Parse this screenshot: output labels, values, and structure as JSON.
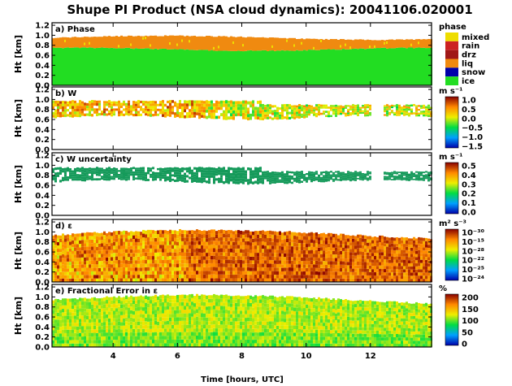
{
  "title": "Shupe PI Product (NSA cloud dynamics): 20041106.020001",
  "xlabel": "Time [hours, UTC]",
  "colors": {
    "phase_ice": "#22dd22",
    "phase_snow": "#0000aa",
    "phase_liq": "#f08a10",
    "phase_drz": "#a01818",
    "phase_rain": "#cc2222",
    "phase_mixed": "#eedd00",
    "uncertainty": "#159a5a"
  },
  "chart_data": [
    {
      "type": "heatmap",
      "panel_label": "a) Phase",
      "ylabel": "Ht [km]",
      "xlim": [
        2.1,
        13.9
      ],
      "ylim": [
        0.0,
        1.25
      ],
      "x_ticks": [
        "4",
        "6",
        "8",
        "10",
        "12"
      ],
      "y_ticks": [
        "0.0",
        "0.2",
        "0.4",
        "0.6",
        "0.8",
        "1.0",
        "1.2"
      ],
      "legend_title": "phase",
      "legend_entries": [
        "mixed",
        "rain",
        "drz",
        "liq",
        "snow",
        "ice"
      ],
      "layers": [
        {
          "category": "ice",
          "from": 0.0,
          "to": 0.72
        },
        {
          "category": "liq",
          "from": 0.72,
          "to": 1.0
        },
        {
          "category": "mixed",
          "from": 0.72,
          "to": 0.95,
          "sparse": true
        }
      ]
    },
    {
      "type": "heatmap",
      "panel_label": "b) W",
      "ylabel": "Ht [km]",
      "xlim": [
        2.1,
        13.9
      ],
      "ylim": [
        0.0,
        1.25
      ],
      "y_ticks": [
        "0.0",
        "0.2",
        "0.4",
        "0.6",
        "0.8",
        "1.0",
        "1.2"
      ],
      "colorbar_title": "m s⁻¹",
      "colorbar_ticks": [
        "1.0",
        "0.5",
        "0.0",
        "−0.5",
        "−1.0",
        "−1.5"
      ],
      "value_range": [
        -1.5,
        1.0
      ],
      "layer": {
        "from": 0.62,
        "to": 1.02
      }
    },
    {
      "type": "heatmap",
      "panel_label": "c) W uncertainty",
      "ylabel": "Ht [km]",
      "xlim": [
        2.1,
        13.9
      ],
      "ylim": [
        0.0,
        1.25
      ],
      "y_ticks": [
        "0.0",
        "0.2",
        "0.4",
        "0.6",
        "0.8",
        "1.0",
        "1.2"
      ],
      "colorbar_title": "m s⁻¹",
      "colorbar_ticks": [
        "0.5",
        "0.4",
        "0.3",
        "0.2",
        "0.1",
        "0.0"
      ],
      "value_range": [
        0.0,
        0.5
      ],
      "layer": {
        "from": 0.65,
        "to": 1.0
      }
    },
    {
      "type": "heatmap",
      "panel_label": "d) ε",
      "ylabel": "Ht [km]",
      "xlim": [
        2.1,
        13.9
      ],
      "ylim": [
        0.0,
        1.25
      ],
      "y_ticks": [
        "0.0",
        "0.2",
        "0.4",
        "0.6",
        "0.8",
        "1.0",
        "1.2"
      ],
      "colorbar_title": "m² s⁻³",
      "colorbar_ticks": [
        "10⁻³⁰",
        "10⁻¹⁵",
        "10⁻²⁸",
        "10⁻²²",
        "10⁻²⁵",
        "10⁻²⁴"
      ],
      "log_scale": true,
      "layer": {
        "from": 0.0,
        "to": 1.05
      }
    },
    {
      "type": "heatmap",
      "panel_label": "e) Fractional Error in ε",
      "ylabel": "Ht [km]",
      "xlim": [
        2.1,
        13.9
      ],
      "ylim": [
        0.0,
        1.25
      ],
      "x_ticks": [
        "4",
        "6",
        "8",
        "10",
        "12"
      ],
      "y_ticks": [
        "0.0",
        "0.2",
        "0.4",
        "0.6",
        "0.8",
        "1.0",
        "1.2"
      ],
      "colorbar_title": "%",
      "colorbar_ticks": [
        "200",
        "150",
        "100",
        "50",
        "0"
      ],
      "value_range": [
        0,
        200
      ],
      "layer": {
        "from": 0.0,
        "to": 1.05
      }
    }
  ]
}
